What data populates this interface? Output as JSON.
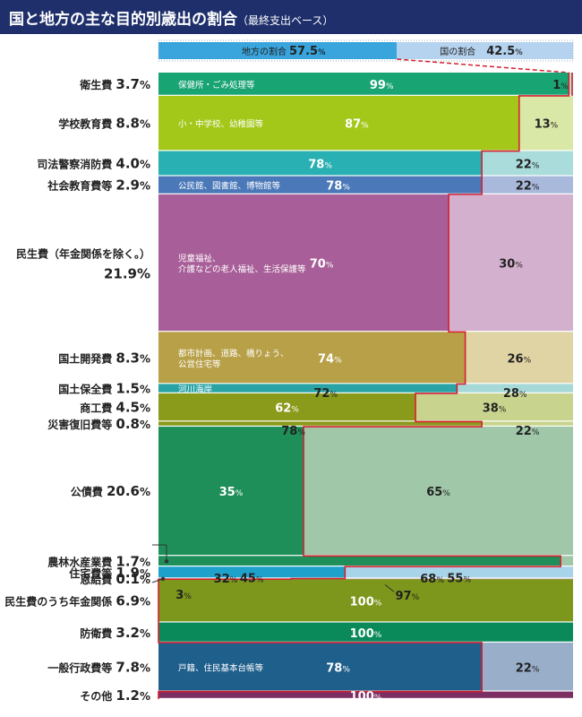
{
  "title": "国と地方の主な目的別歳出の割合",
  "subtitle": "（最終支出ベース）",
  "header": {
    "local_label": "地方の割合",
    "local_value": "57.5",
    "local_unit": "%",
    "national_label": "国の割合",
    "national_value": "42.5",
    "national_unit": "%"
  },
  "chart_data": {
    "type": "bar",
    "orientation": "horizontal",
    "stacked": "100%",
    "title": "国と地方の主な目的別歳出の割合",
    "subtitle": "（最終支出ベース）",
    "series": [
      {
        "name": "地方の割合",
        "total_share": 57.5
      },
      {
        "name": "国の割合",
        "total_share": 42.5
      }
    ],
    "rows": [
      {
        "name": "衛生費",
        "share": 3.7,
        "local": 99,
        "national": 1,
        "note": "保健所・ごみ処理等"
      },
      {
        "name": "学校教育費",
        "share": 8.8,
        "local": 87,
        "national": 13,
        "note": "小・中学校、幼稚園等"
      },
      {
        "name": "司法警察消防費",
        "share": 4.0,
        "local": 78,
        "national": 22,
        "note": ""
      },
      {
        "name": "社会教育費等",
        "share": 2.9,
        "local": 78,
        "national": 22,
        "note": "公民館、図書館、博物館等"
      },
      {
        "name": "民生費（年金関係を除く。）",
        "share": 21.9,
        "local": 70,
        "national": 30,
        "note": "児童福祉、\n介護などの老人福祉、生活保護等"
      },
      {
        "name": "国土開発費",
        "share": 8.3,
        "local": 74,
        "national": 26,
        "note": "都市計画、道路、橋りょう、\n公営住宅等"
      },
      {
        "name": "国土保全費",
        "share": 1.5,
        "local": 72,
        "national": 28,
        "note": "河川海岸"
      },
      {
        "name": "商工費",
        "share": 4.5,
        "local": 62,
        "national": 38,
        "note": ""
      },
      {
        "name": "災害復旧費等",
        "share": 0.8,
        "local": 78,
        "national": 22,
        "note": ""
      },
      {
        "name": "公債費",
        "share": 20.6,
        "local": 35,
        "national": 65,
        "note": ""
      },
      {
        "name": "農林水産業費",
        "share": 1.7,
        "local": 97,
        "national": 3,
        "note": ""
      },
      {
        "name": "住宅費等",
        "share": 1.9,
        "local": 45,
        "national": 55,
        "note": ""
      },
      {
        "name": "恩給費",
        "share": 0.1,
        "local": 32,
        "national": 68,
        "note": ""
      },
      {
        "name": "民生費のうち年金関係",
        "share": 6.9,
        "local": 0,
        "national": 100,
        "note": ""
      },
      {
        "name": "防衛費",
        "share": 3.2,
        "local": 0,
        "national": 100,
        "note": ""
      },
      {
        "name": "一般行政費等",
        "share": 7.8,
        "local": 78,
        "national": 22,
        "note": "戸籍、住民基本台帳等"
      },
      {
        "name": "その他",
        "share": 1.2,
        "local": 0,
        "national": 100,
        "note": ""
      }
    ],
    "unit": "%",
    "colors": {
      "local": [
        "#19a474",
        "#a3c81a",
        "#29b0b2",
        "#4a78b8",
        "#a85e98",
        "#b8a048",
        "#2aa3a6",
        "#8a9a1a",
        "#8a9a1a",
        "#1f8f5a",
        "#1f8f5a",
        "#1ea2cc",
        "#8a2f5e",
        "#7d961c",
        "#0a8a5a",
        "#1f5f8c",
        "#7d2e62"
      ],
      "national": [
        "#bfe6d4",
        "#d9e8a6",
        "#aadcdc",
        "#a8b9dc",
        "#d4b0cf",
        "#e0d4a4",
        "#a6d8d8",
        "#c8d48e",
        "#c8d48e",
        "#9fc7a8",
        "#9fc7a8",
        "#a7d4e8",
        "#d4a7bf",
        "#7d961c",
        "#0a8a5a",
        "#99aec9",
        "#7d2e62"
      ],
      "header_local": "#3aa4dc",
      "header_national": "#b5d3ee",
      "boundary": "#d42030",
      "title_bg": "#1e2f6b"
    }
  }
}
